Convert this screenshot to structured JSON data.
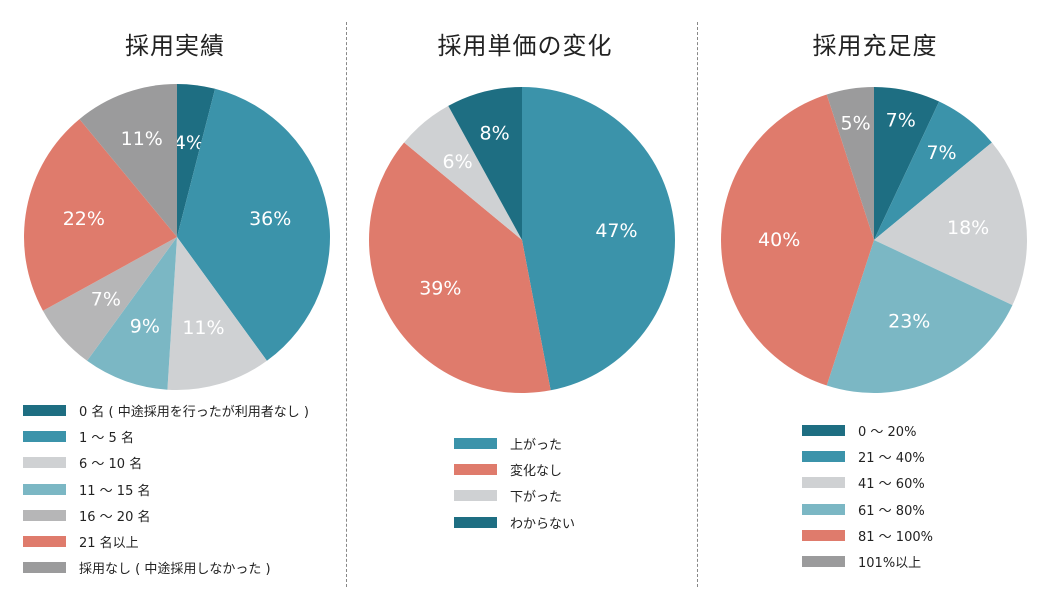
{
  "chart_data": [
    {
      "type": "pie",
      "title": "採用実績",
      "categories": [
        "0 名 ( 中途採用を行ったが利用者なし )",
        "1 〜 5 名",
        "6 〜 10 名",
        "11 〜 15 名",
        "16 〜 20 名",
        "21 名以上",
        "採用なし ( 中途採用しなかった )"
      ],
      "values": [
        4,
        36,
        11,
        9,
        7,
        22,
        11
      ],
      "labels": [
        "4%",
        "36%",
        "11%",
        "9%",
        "7%",
        "22%",
        "11%"
      ],
      "colors": [
        "#1e6e82",
        "#3b93aa",
        "#cfd1d3",
        "#7bb7c4",
        "#b6b6b7",
        "#df7b6c",
        "#9b9b9c"
      ],
      "legend_position": "bottom"
    },
    {
      "type": "pie",
      "title": "採用単価の変化",
      "categories": [
        "上がった",
        "変化なし",
        "下がった",
        "わからない"
      ],
      "values": [
        47,
        39,
        6,
        8
      ],
      "labels": [
        "47%",
        "39%",
        "6%",
        "8%"
      ],
      "colors": [
        "#3b93aa",
        "#df7b6c",
        "#cfd1d3",
        "#1e6e82"
      ],
      "legend_position": "bottom"
    },
    {
      "type": "pie",
      "title": "採用充足度",
      "categories": [
        "0 〜 20%",
        "21 〜 40%",
        "41 〜 60%",
        "61 〜 80%",
        "81 〜 100%",
        "101%以上"
      ],
      "values": [
        7,
        7,
        18,
        23,
        40,
        5
      ],
      "labels": [
        "7%",
        "7%",
        "18%",
        "23%",
        "40%",
        "5%"
      ],
      "colors": [
        "#1e6e82",
        "#3b93aa",
        "#cfd1d3",
        "#7bb7c4",
        "#df7b6c",
        "#9b9b9c"
      ],
      "legend_position": "bottom"
    }
  ]
}
